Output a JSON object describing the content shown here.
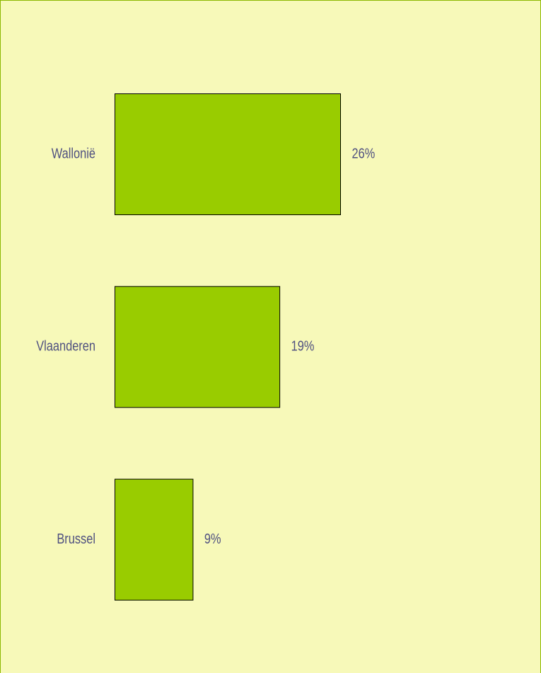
{
  "chart_data": {
    "type": "bar",
    "orientation": "horizontal",
    "categories": [
      "Wallonië",
      "Vlaanderen",
      "Brussel"
    ],
    "values": [
      26,
      19,
      9
    ],
    "value_labels": [
      "26%",
      "19%",
      "9%"
    ],
    "color": "#99cc00"
  }
}
